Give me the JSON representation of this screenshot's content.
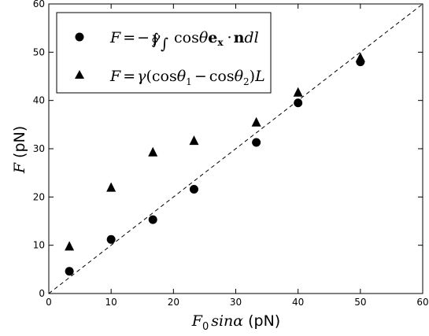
{
  "chart_data": {
    "type": "scatter",
    "xlabel": {
      "math": "F",
      "sub": "0",
      "func": "sinα",
      "unit": "(pN)"
    },
    "ylabel": {
      "math": "F",
      "unit": "(pN)"
    },
    "xlim": [
      0,
      60
    ],
    "ylim": [
      0,
      60
    ],
    "xticks": [
      0,
      10,
      20,
      30,
      40,
      50,
      60
    ],
    "yticks": [
      0,
      10,
      20,
      30,
      40,
      50,
      60
    ],
    "grid": false,
    "legend_position": "top-left",
    "reference_line": {
      "style": "dashed",
      "from": [
        0,
        0
      ],
      "to": [
        60,
        60
      ],
      "color": "#000000"
    },
    "series": [
      {
        "marker": "circle",
        "color": "#000000",
        "legend_label": "F = −γ ∮ ∫ cosθ e_x · n dl",
        "x": [
          3.3,
          10.0,
          16.7,
          23.3,
          33.3,
          40.0,
          50.0
        ],
        "y": [
          4.6,
          11.2,
          15.3,
          21.6,
          31.3,
          39.5,
          48.0
        ]
      },
      {
        "marker": "triangle",
        "color": "#000000",
        "legend_label": "F = γ(cosθ1 − cosθ2)L",
        "x": [
          3.3,
          10.0,
          16.7,
          23.3,
          33.3,
          40.0,
          50.0
        ],
        "y": [
          9.8,
          22.0,
          29.3,
          31.7,
          35.5,
          41.7,
          48.9
        ]
      }
    ]
  }
}
